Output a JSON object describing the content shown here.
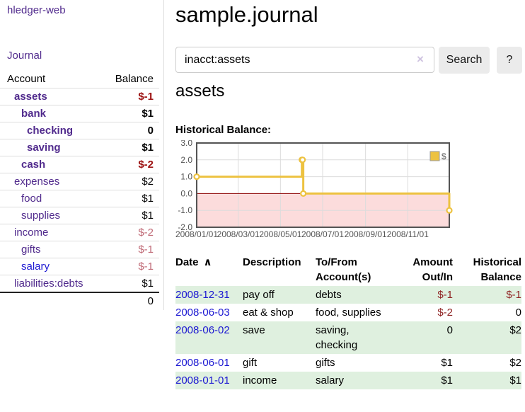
{
  "sidebar": {
    "brand": "hledger-web",
    "nav": {
      "journal_label": "Journal"
    },
    "accounts_table": {
      "headers": {
        "account": "Account",
        "balance": "Balance"
      },
      "rows": [
        {
          "name": "assets",
          "level": 1,
          "bold": true,
          "balance": "$-1",
          "tone": "neg-strong"
        },
        {
          "name": "bank",
          "level": 2,
          "bold": true,
          "balance": "$1",
          "tone": "pos-strong"
        },
        {
          "name": "checking",
          "level": 3,
          "bold": true,
          "balance": "0",
          "tone": "pos-strong"
        },
        {
          "name": "saving",
          "level": 3,
          "bold": true,
          "balance": "$1",
          "tone": "pos-strong"
        },
        {
          "name": "cash",
          "level": 2,
          "bold": true,
          "balance": "$-2",
          "tone": "neg-strong"
        },
        {
          "name": "expenses",
          "level": 1,
          "bold": false,
          "balance": "$2",
          "tone": "pos"
        },
        {
          "name": "food",
          "level": 2,
          "bold": false,
          "balance": "$1",
          "tone": "pos"
        },
        {
          "name": "supplies",
          "level": 2,
          "bold": false,
          "balance": "$1",
          "tone": "pos"
        },
        {
          "name": "income",
          "level": 1,
          "bold": false,
          "balance": "$-2",
          "tone": "neg-muted"
        },
        {
          "name": "gifts",
          "level": 2,
          "bold": false,
          "balance": "$-1",
          "tone": "neg-muted"
        },
        {
          "name": "salary",
          "level": 2,
          "bold": false,
          "balance": "$-1",
          "tone": "neg-muted",
          "link_color": "blue"
        },
        {
          "name": "liabilities:debts",
          "level": 1,
          "bold": false,
          "balance": "$1",
          "tone": "pos"
        }
      ],
      "total": "0"
    }
  },
  "main": {
    "title": "sample.journal",
    "search": {
      "value": "inacct:assets",
      "clear_icon": "×",
      "button_label": "Search",
      "help_label": "?"
    },
    "account_heading": "assets",
    "chart_label": "Historical Balance:",
    "transactions": {
      "headers": {
        "date": "Date",
        "description": "Description",
        "tofrom": "To/From Account(s)",
        "amount": "Amount Out/In",
        "balance": "Historical Balance"
      },
      "sort_icon": "∧",
      "rows": [
        {
          "date": "2008-12-31",
          "description": "pay off",
          "accounts": "debts",
          "amount": "$-1",
          "balance": "$-1",
          "amount_tone": "neg",
          "balance_tone": "neg"
        },
        {
          "date": "2008-06-03",
          "description": "eat & shop",
          "accounts": "food, supplies",
          "amount": "$-2",
          "balance": "0",
          "amount_tone": "neg",
          "balance_tone": "pos"
        },
        {
          "date": "2008-06-02",
          "description": "save",
          "accounts": "saving, checking",
          "amount": "0",
          "balance": "$2",
          "amount_tone": "pos",
          "balance_tone": "pos"
        },
        {
          "date": "2008-06-01",
          "description": "gift",
          "accounts": "gifts",
          "amount": "$1",
          "balance": "$2",
          "amount_tone": "pos",
          "balance_tone": "pos"
        },
        {
          "date": "2008-01-01",
          "description": "income",
          "accounts": "salary",
          "amount": "$1",
          "balance": "$1",
          "amount_tone": "pos",
          "balance_tone": "pos"
        }
      ]
    }
  },
  "chart_data": {
    "type": "line",
    "title": "Historical Balance:",
    "ylim": [
      -2,
      3
    ],
    "x_range": [
      "2008-01-01",
      "2008-12-31"
    ],
    "y_tick_labels": [
      "3.0",
      "2.0",
      "1.0",
      "0.0",
      "-1.0",
      "-2.0"
    ],
    "x_ticks": [
      {
        "date": "2008-01-01",
        "label": "2008/01/01"
      },
      {
        "date": "2008-03-01",
        "label": "2008/03/01"
      },
      {
        "date": "2008-05-01",
        "label": "2008/05/01"
      },
      {
        "date": "2008-07-01",
        "label": "2008/07/01"
      },
      {
        "date": "2008-09-01",
        "label": "2008/09/01"
      },
      {
        "date": "2008-11-01",
        "label": "2008/11/01"
      }
    ],
    "legend": {
      "label": "$",
      "position": "top-right"
    },
    "series": [
      {
        "name": "$",
        "color": "#edc240",
        "points": [
          {
            "date": "2008-01-01",
            "value": 1
          },
          {
            "date": "2008-06-01",
            "value": 2
          },
          {
            "date": "2008-06-02",
            "value": 2
          },
          {
            "date": "2008-06-03",
            "value": 0
          },
          {
            "date": "2008-12-31",
            "value": -1
          }
        ]
      }
    ],
    "negative_region_color": "#fcdcdc",
    "zero_line_color": "#8b0000",
    "grid": true
  }
}
